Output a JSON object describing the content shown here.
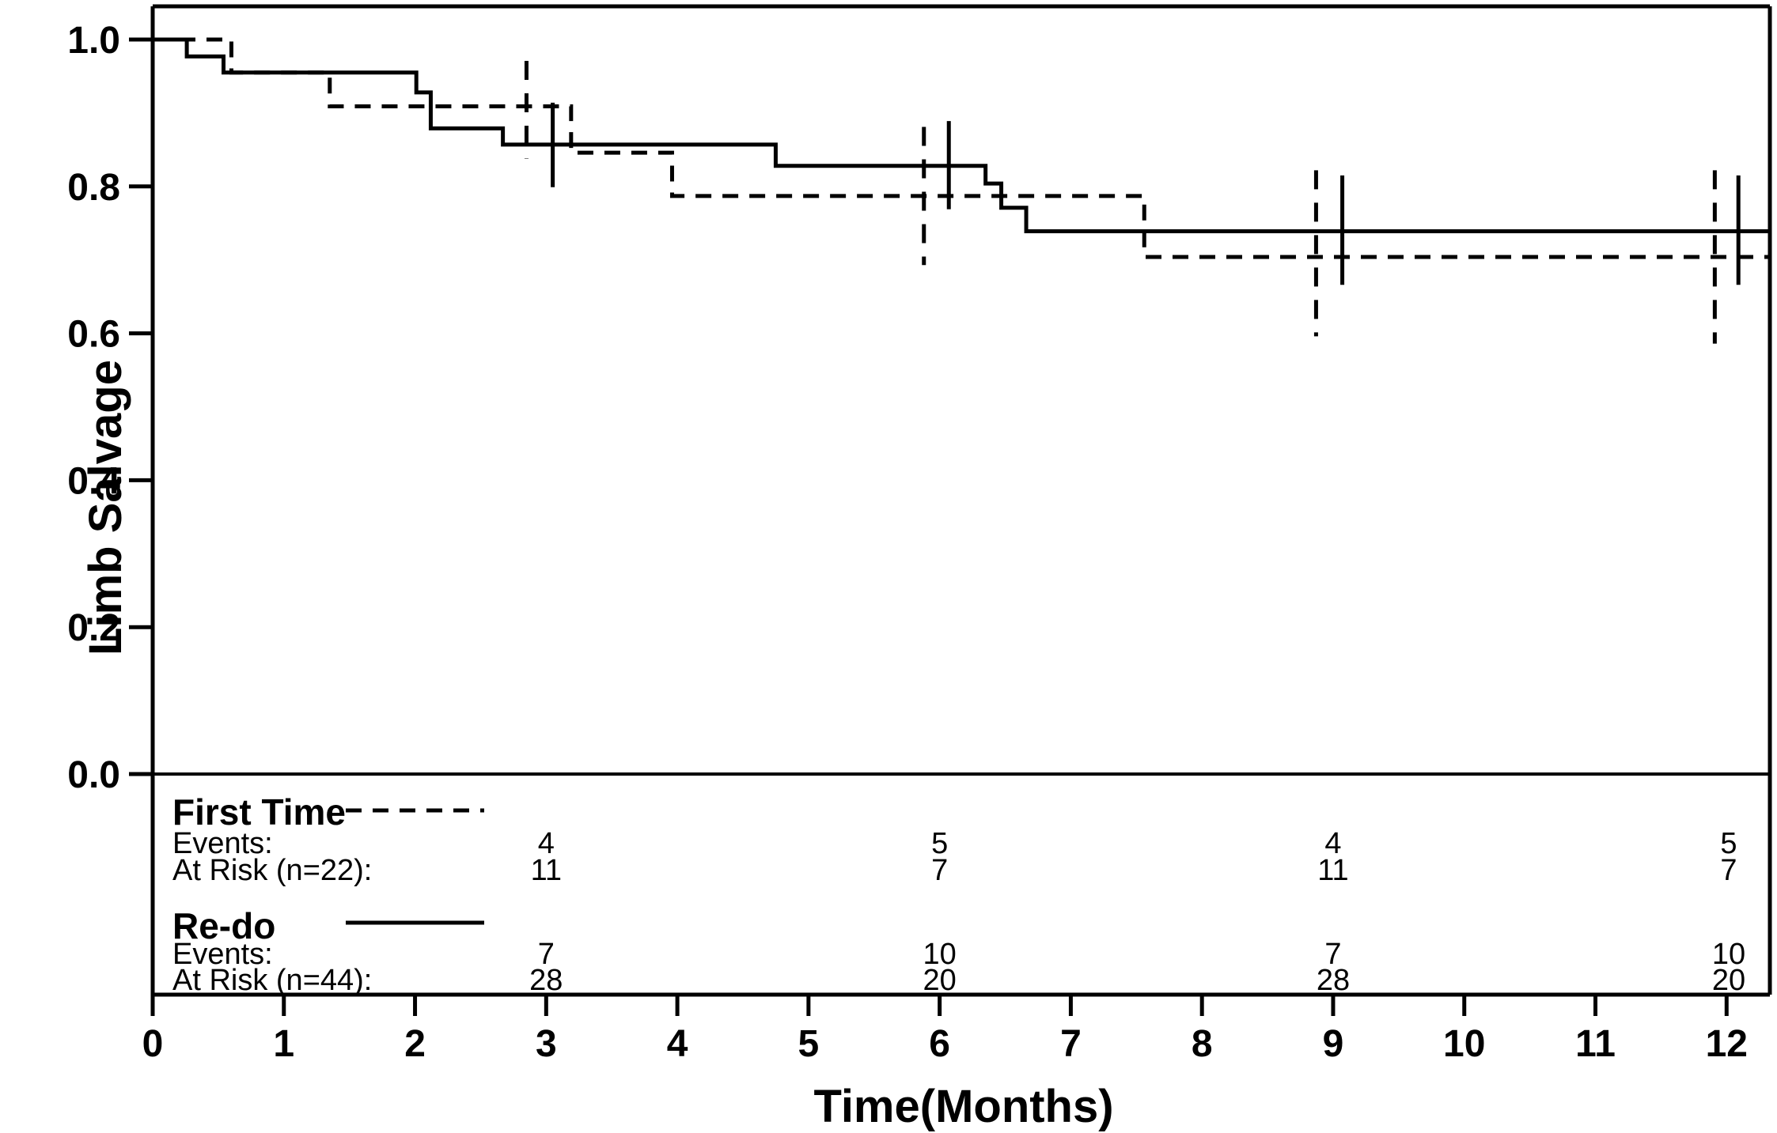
{
  "figure": {
    "background": "#ffffff",
    "line_color": "#000000"
  },
  "chart_data": {
    "type": "line",
    "subtype": "kaplan-meier-step",
    "title": "",
    "xlabel": "Time(Months)",
    "ylabel": "Limb Salvage",
    "xlim": [
      0,
      12.33
    ],
    "ylim": [
      0,
      1.045
    ],
    "grid": false,
    "xticks": {
      "values": [
        0,
        1,
        2,
        3,
        4,
        5,
        6,
        7,
        8,
        9,
        10,
        11,
        12
      ],
      "labels": [
        "0",
        "1",
        "2",
        "3",
        "4",
        "5",
        "6",
        "7",
        "8",
        "9",
        "10",
        "11",
        "12"
      ]
    },
    "yticks": {
      "values": [
        0,
        0.2,
        0.4,
        0.6,
        0.8,
        1.0
      ],
      "labels": [
        "0.0",
        "0.2",
        "0.4",
        "0.6",
        "0.8",
        "1.0"
      ]
    },
    "series": [
      {
        "name": "First Time",
        "n": 22,
        "style": "dashed",
        "start": [
          0,
          1.0
        ],
        "steps": [
          [
            0.6,
            0.955
          ],
          [
            1.35,
            0.909
          ],
          [
            3.19,
            0.846
          ],
          [
            3.96,
            0.787
          ],
          [
            7.56,
            0.704
          ]
        ],
        "end_t": 12.33,
        "censors": [
          {
            "t": 2.85,
            "v_top": 0.971,
            "v_bottom": 0.838
          },
          {
            "t": 5.88,
            "v_top": 0.881,
            "v_bottom": 0.693
          },
          {
            "t": 8.87,
            "v_top": 0.822,
            "v_bottom": 0.596
          },
          {
            "t": 11.91,
            "v_top": 0.822,
            "v_bottom": 0.586
          }
        ]
      },
      {
        "name": "Re-do",
        "n": 44,
        "style": "solid",
        "start": [
          0,
          1.0
        ],
        "steps": [
          [
            0.26,
            0.977
          ],
          [
            0.54,
            0.955
          ],
          [
            2.01,
            0.928
          ],
          [
            2.12,
            0.879
          ],
          [
            2.67,
            0.857
          ],
          [
            4.75,
            0.828
          ],
          [
            6.35,
            0.804
          ],
          [
            6.47,
            0.771
          ],
          [
            6.66,
            0.739
          ]
        ],
        "end_t": 12.33,
        "censors": [
          {
            "t": 3.05,
            "v_top": 0.914,
            "v_bottom": 0.799
          },
          {
            "t": 6.07,
            "v_top": 0.889,
            "v_bottom": 0.769
          },
          {
            "t": 9.07,
            "v_top": 0.815,
            "v_bottom": 0.666
          },
          {
            "t": 12.09,
            "v_top": 0.815,
            "v_bottom": 0.666
          }
        ]
      }
    ],
    "risk_table": {
      "times": [
        3,
        6,
        9,
        12
      ],
      "groups": [
        {
          "label": "First Time",
          "events_label": "Events:",
          "at_risk_label": "At Risk (n=22):",
          "events": [
            "4",
            "5",
            "4",
            "5"
          ],
          "at_risk": [
            "11",
            "7",
            "11",
            "7"
          ]
        },
        {
          "label": "Re-do",
          "events_label": "Events:",
          "at_risk_label": "At Risk (n=44):",
          "events": [
            "7",
            "10",
            "7",
            "10"
          ],
          "at_risk": [
            "28",
            "20",
            "28",
            "20"
          ]
        }
      ]
    }
  }
}
